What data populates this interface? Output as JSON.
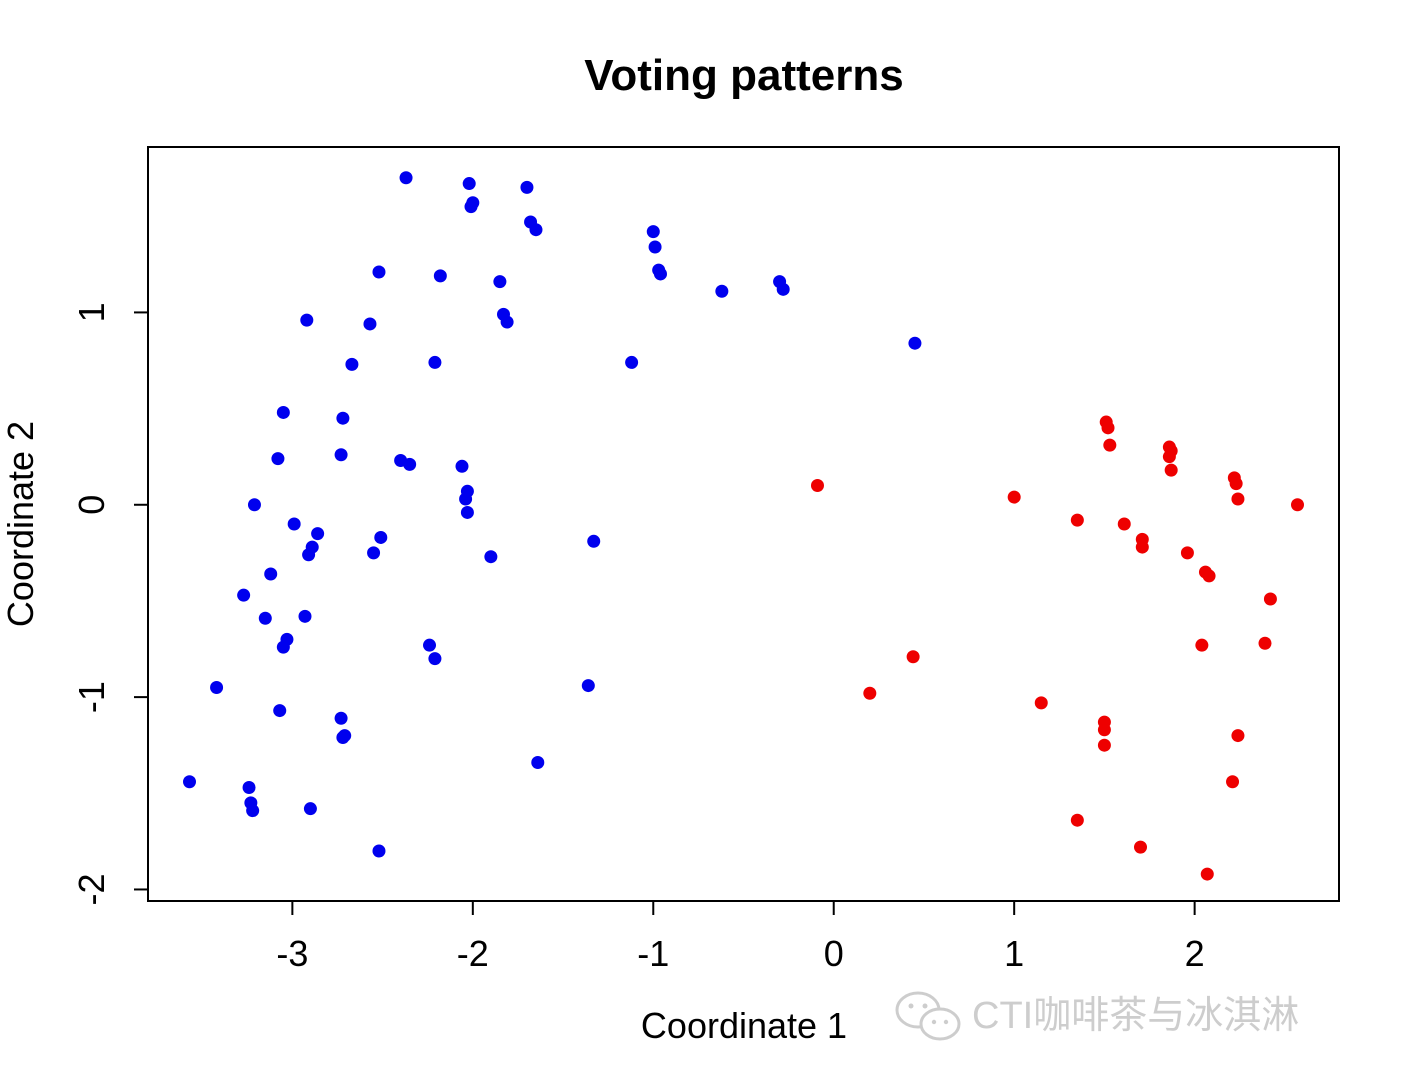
{
  "chart_data": {
    "type": "scatter",
    "title": "Voting patterns",
    "xlabel": "Coordinate 1",
    "ylabel": "Coordinate 2",
    "xlim": [
      -3.8,
      2.8
    ],
    "ylim": [
      -2.06,
      1.86
    ],
    "xticks": [
      -3,
      -2,
      -1,
      0,
      1,
      2
    ],
    "xtick_labels": [
      "-3",
      "-2",
      "-1",
      "0",
      "1",
      "2"
    ],
    "yticks": [
      -2,
      -1,
      0,
      1
    ],
    "ytick_labels": [
      "-2",
      "-1",
      "0",
      "1"
    ],
    "grid": false,
    "legend": "none",
    "series": [
      {
        "color": "#0000ee",
        "points": [
          [
            -2.37,
            1.7
          ],
          [
            -2.02,
            1.67
          ],
          [
            -1.7,
            1.65
          ],
          [
            -2.01,
            1.55
          ],
          [
            -2.0,
            1.57
          ],
          [
            -1.68,
            1.47
          ],
          [
            -1.65,
            1.43
          ],
          [
            -1.0,
            1.42
          ],
          [
            -0.99,
            1.34
          ],
          [
            -0.97,
            1.22
          ],
          [
            -0.96,
            1.2
          ],
          [
            -2.52,
            1.21
          ],
          [
            -2.18,
            1.19
          ],
          [
            -1.85,
            1.16
          ],
          [
            -0.62,
            1.11
          ],
          [
            -0.3,
            1.16
          ],
          [
            -0.28,
            1.12
          ],
          [
            -2.92,
            0.96
          ],
          [
            -2.57,
            0.94
          ],
          [
            -1.83,
            0.99
          ],
          [
            -1.81,
            0.95
          ],
          [
            -2.67,
            0.73
          ],
          [
            -2.21,
            0.74
          ],
          [
            -1.12,
            0.74
          ],
          [
            0.45,
            0.84
          ],
          [
            -3.05,
            0.48
          ],
          [
            -2.72,
            0.45
          ],
          [
            -3.08,
            0.24
          ],
          [
            -2.73,
            0.26
          ],
          [
            -2.4,
            0.23
          ],
          [
            -2.35,
            0.21
          ],
          [
            -2.06,
            0.2
          ],
          [
            -2.03,
            0.07
          ],
          [
            -2.04,
            0.03
          ],
          [
            -2.03,
            -0.04
          ],
          [
            -3.21,
            0.0
          ],
          [
            -2.99,
            -0.1
          ],
          [
            -2.86,
            -0.15
          ],
          [
            -2.89,
            -0.22
          ],
          [
            -2.91,
            -0.26
          ],
          [
            -2.51,
            -0.17
          ],
          [
            -2.55,
            -0.25
          ],
          [
            -1.9,
            -0.27
          ],
          [
            -1.33,
            -0.19
          ],
          [
            -3.12,
            -0.36
          ],
          [
            -3.27,
            -0.47
          ],
          [
            -3.15,
            -0.59
          ],
          [
            -2.93,
            -0.58
          ],
          [
            -3.03,
            -0.7
          ],
          [
            -3.05,
            -0.74
          ],
          [
            -2.24,
            -0.73
          ],
          [
            -2.21,
            -0.8
          ],
          [
            -3.42,
            -0.95
          ],
          [
            -1.36,
            -0.94
          ],
          [
            -3.07,
            -1.07
          ],
          [
            -2.73,
            -1.11
          ],
          [
            -2.72,
            -1.21
          ],
          [
            -2.71,
            -1.2
          ],
          [
            -1.64,
            -1.34
          ],
          [
            -3.57,
            -1.44
          ],
          [
            -3.24,
            -1.47
          ],
          [
            -3.23,
            -1.55
          ],
          [
            -3.22,
            -1.59
          ],
          [
            -2.9,
            -1.58
          ],
          [
            -2.52,
            -1.8
          ]
        ]
      },
      {
        "color": "#ee0000",
        "points": [
          [
            -0.09,
            0.1
          ],
          [
            1.0,
            0.04
          ],
          [
            1.51,
            0.43
          ],
          [
            1.52,
            0.4
          ],
          [
            1.53,
            0.31
          ],
          [
            1.86,
            0.3
          ],
          [
            1.87,
            0.28
          ],
          [
            1.86,
            0.25
          ],
          [
            1.87,
            0.18
          ],
          [
            2.22,
            0.14
          ],
          [
            2.23,
            0.11
          ],
          [
            2.24,
            0.03
          ],
          [
            2.57,
            0.0
          ],
          [
            1.35,
            -0.08
          ],
          [
            1.61,
            -0.1
          ],
          [
            1.71,
            -0.18
          ],
          [
            1.71,
            -0.22
          ],
          [
            1.96,
            -0.25
          ],
          [
            2.06,
            -0.35
          ],
          [
            2.08,
            -0.37
          ],
          [
            2.42,
            -0.49
          ],
          [
            2.04,
            -0.73
          ],
          [
            2.39,
            -0.72
          ],
          [
            0.44,
            -0.79
          ],
          [
            0.2,
            -0.98
          ],
          [
            1.15,
            -1.03
          ],
          [
            1.5,
            -1.13
          ],
          [
            1.5,
            -1.17
          ],
          [
            1.5,
            -1.25
          ],
          [
            2.24,
            -1.2
          ],
          [
            2.21,
            -1.44
          ],
          [
            1.35,
            -1.64
          ],
          [
            1.7,
            -1.78
          ],
          [
            2.07,
            -1.92
          ]
        ]
      }
    ]
  },
  "watermark": {
    "text": "CTI咖啡茶与冰淇淋",
    "icon": "wechat-icon"
  }
}
